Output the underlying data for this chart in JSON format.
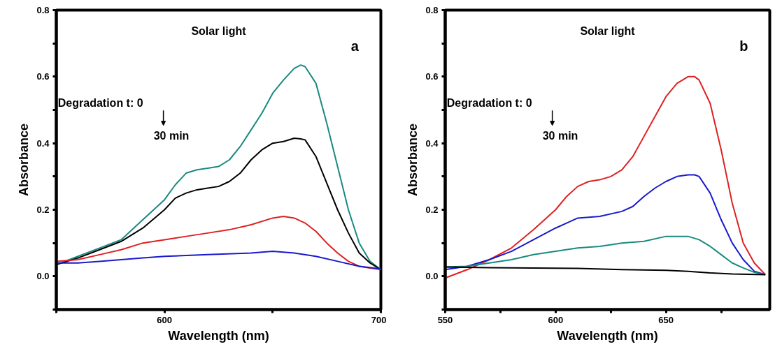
{
  "chart_data": [
    {
      "type": "line",
      "xlabel": "Wavelength (nm)",
      "ylabel": "Absorbance",
      "xlim": [
        550,
        700
      ],
      "ylim": [
        -0.1,
        0.8
      ],
      "xticks": [
        {
          "value": 550,
          "label": null
        },
        600,
        {
          "value": 650,
          "label": null
        },
        700
      ],
      "yticks": [
        {
          "value": -0.1,
          "label": null
        },
        {
          "value": 0.0,
          "label": "0.0"
        },
        {
          "value": 0.1,
          "label": null
        },
        0.2,
        {
          "value": 0.3,
          "label": null
        },
        0.4,
        {
          "value": 0.5,
          "label": null
        },
        0.6,
        {
          "value": 0.7,
          "label": null
        },
        0.8
      ],
      "annotations": [
        "Solar light",
        "a",
        "Degradation t: 0",
        "30 min"
      ],
      "grid": false,
      "marker": "none",
      "line_style": "solid",
      "series": [
        {
          "color": "#1a8a80",
          "x": [
            550,
            560,
            570,
            580,
            590,
            600,
            605,
            610,
            615,
            620,
            625,
            630,
            635,
            640,
            645,
            650,
            655,
            660,
            663,
            665,
            670,
            675,
            680,
            685,
            690,
            695,
            700
          ],
          "values": [
            0.035,
            0.06,
            0.085,
            0.11,
            0.17,
            0.23,
            0.275,
            0.31,
            0.32,
            0.325,
            0.33,
            0.35,
            0.39,
            0.44,
            0.49,
            0.55,
            0.59,
            0.625,
            0.635,
            0.63,
            0.58,
            0.46,
            0.33,
            0.2,
            0.1,
            0.045,
            0.02
          ]
        },
        {
          "color": "#000000",
          "x": [
            550,
            560,
            570,
            580,
            590,
            600,
            605,
            610,
            615,
            620,
            625,
            630,
            635,
            640,
            645,
            650,
            655,
            660,
            663,
            665,
            670,
            675,
            680,
            685,
            690,
            695,
            700
          ],
          "values": [
            0.035,
            0.055,
            0.08,
            0.105,
            0.145,
            0.2,
            0.235,
            0.25,
            0.26,
            0.265,
            0.27,
            0.285,
            0.31,
            0.35,
            0.38,
            0.4,
            0.405,
            0.415,
            0.413,
            0.41,
            0.36,
            0.28,
            0.2,
            0.13,
            0.07,
            0.04,
            0.02
          ]
        },
        {
          "color": "#dd2222",
          "x": [
            550,
            560,
            570,
            580,
            590,
            600,
            610,
            620,
            630,
            640,
            650,
            655,
            660,
            665,
            670,
            675,
            680,
            685,
            690,
            695,
            700
          ],
          "values": [
            0.045,
            0.05,
            0.065,
            0.08,
            0.1,
            0.11,
            0.12,
            0.13,
            0.14,
            0.155,
            0.175,
            0.18,
            0.175,
            0.16,
            0.135,
            0.1,
            0.07,
            0.045,
            0.03,
            0.025,
            0.02
          ]
        },
        {
          "color": "#1a1acc",
          "x": [
            550,
            560,
            570,
            580,
            590,
            600,
            620,
            640,
            650,
            660,
            670,
            680,
            690,
            700
          ],
          "values": [
            0.04,
            0.04,
            0.045,
            0.05,
            0.055,
            0.06,
            0.065,
            0.07,
            0.075,
            0.07,
            0.06,
            0.045,
            0.03,
            0.022
          ]
        }
      ]
    },
    {
      "type": "line",
      "xlabel": "Wavelength (nm)",
      "ylabel": "Absorbance",
      "xlim": [
        550,
        697
      ],
      "ylim": [
        -0.1,
        0.8
      ],
      "xticks": [
        550,
        {
          "value": 575,
          "label": null
        },
        600,
        {
          "value": 625,
          "label": null
        },
        650,
        {
          "value": 675,
          "label": null
        }
      ],
      "yticks": [
        {
          "value": -0.1,
          "label": null
        },
        {
          "value": 0.0,
          "label": "0.0"
        },
        {
          "value": 0.1,
          "label": null
        },
        0.2,
        {
          "value": 0.3,
          "label": null
        },
        0.4,
        {
          "value": 0.5,
          "label": null
        },
        0.6,
        {
          "value": 0.7,
          "label": null
        },
        0.8
      ],
      "annotations": [
        "Solar light",
        "b",
        "Degradation t:  0",
        "30 min"
      ],
      "grid": false,
      "marker": "none",
      "line_style": "solid",
      "series": [
        {
          "color": "#dd2222",
          "x": [
            550,
            560,
            570,
            580,
            590,
            600,
            605,
            610,
            615,
            620,
            625,
            630,
            635,
            640,
            645,
            650,
            655,
            660,
            663,
            665,
            670,
            675,
            680,
            685,
            690,
            695
          ],
          "values": [
            -0.005,
            0.02,
            0.05,
            0.085,
            0.14,
            0.2,
            0.24,
            0.27,
            0.285,
            0.29,
            0.3,
            0.32,
            0.36,
            0.42,
            0.48,
            0.54,
            0.58,
            0.6,
            0.6,
            0.59,
            0.52,
            0.38,
            0.22,
            0.1,
            0.04,
            0.005
          ]
        },
        {
          "color": "#1a1acc",
          "x": [
            550,
            560,
            570,
            580,
            590,
            600,
            605,
            610,
            620,
            630,
            635,
            640,
            645,
            650,
            655,
            660,
            663,
            665,
            670,
            675,
            680,
            685,
            690,
            695
          ],
          "values": [
            0.02,
            0.03,
            0.05,
            0.075,
            0.11,
            0.145,
            0.16,
            0.175,
            0.18,
            0.195,
            0.21,
            0.24,
            0.265,
            0.285,
            0.3,
            0.305,
            0.305,
            0.3,
            0.25,
            0.17,
            0.1,
            0.05,
            0.015,
            0.005
          ]
        },
        {
          "color": "#1a8a80",
          "x": [
            550,
            560,
            570,
            580,
            590,
            600,
            610,
            620,
            630,
            640,
            650,
            655,
            660,
            665,
            670,
            675,
            680,
            685,
            690,
            695
          ],
          "values": [
            0.028,
            0.03,
            0.04,
            0.05,
            0.065,
            0.075,
            0.085,
            0.09,
            0.1,
            0.105,
            0.12,
            0.12,
            0.12,
            0.11,
            0.09,
            0.065,
            0.04,
            0.025,
            0.012,
            0.005
          ]
        },
        {
          "color": "#000000",
          "x": [
            550,
            570,
            590,
            610,
            630,
            650,
            660,
            670,
            680,
            695
          ],
          "values": [
            0.028,
            0.026,
            0.025,
            0.024,
            0.02,
            0.018,
            0.015,
            0.01,
            0.007,
            0.005
          ]
        }
      ]
    }
  ]
}
